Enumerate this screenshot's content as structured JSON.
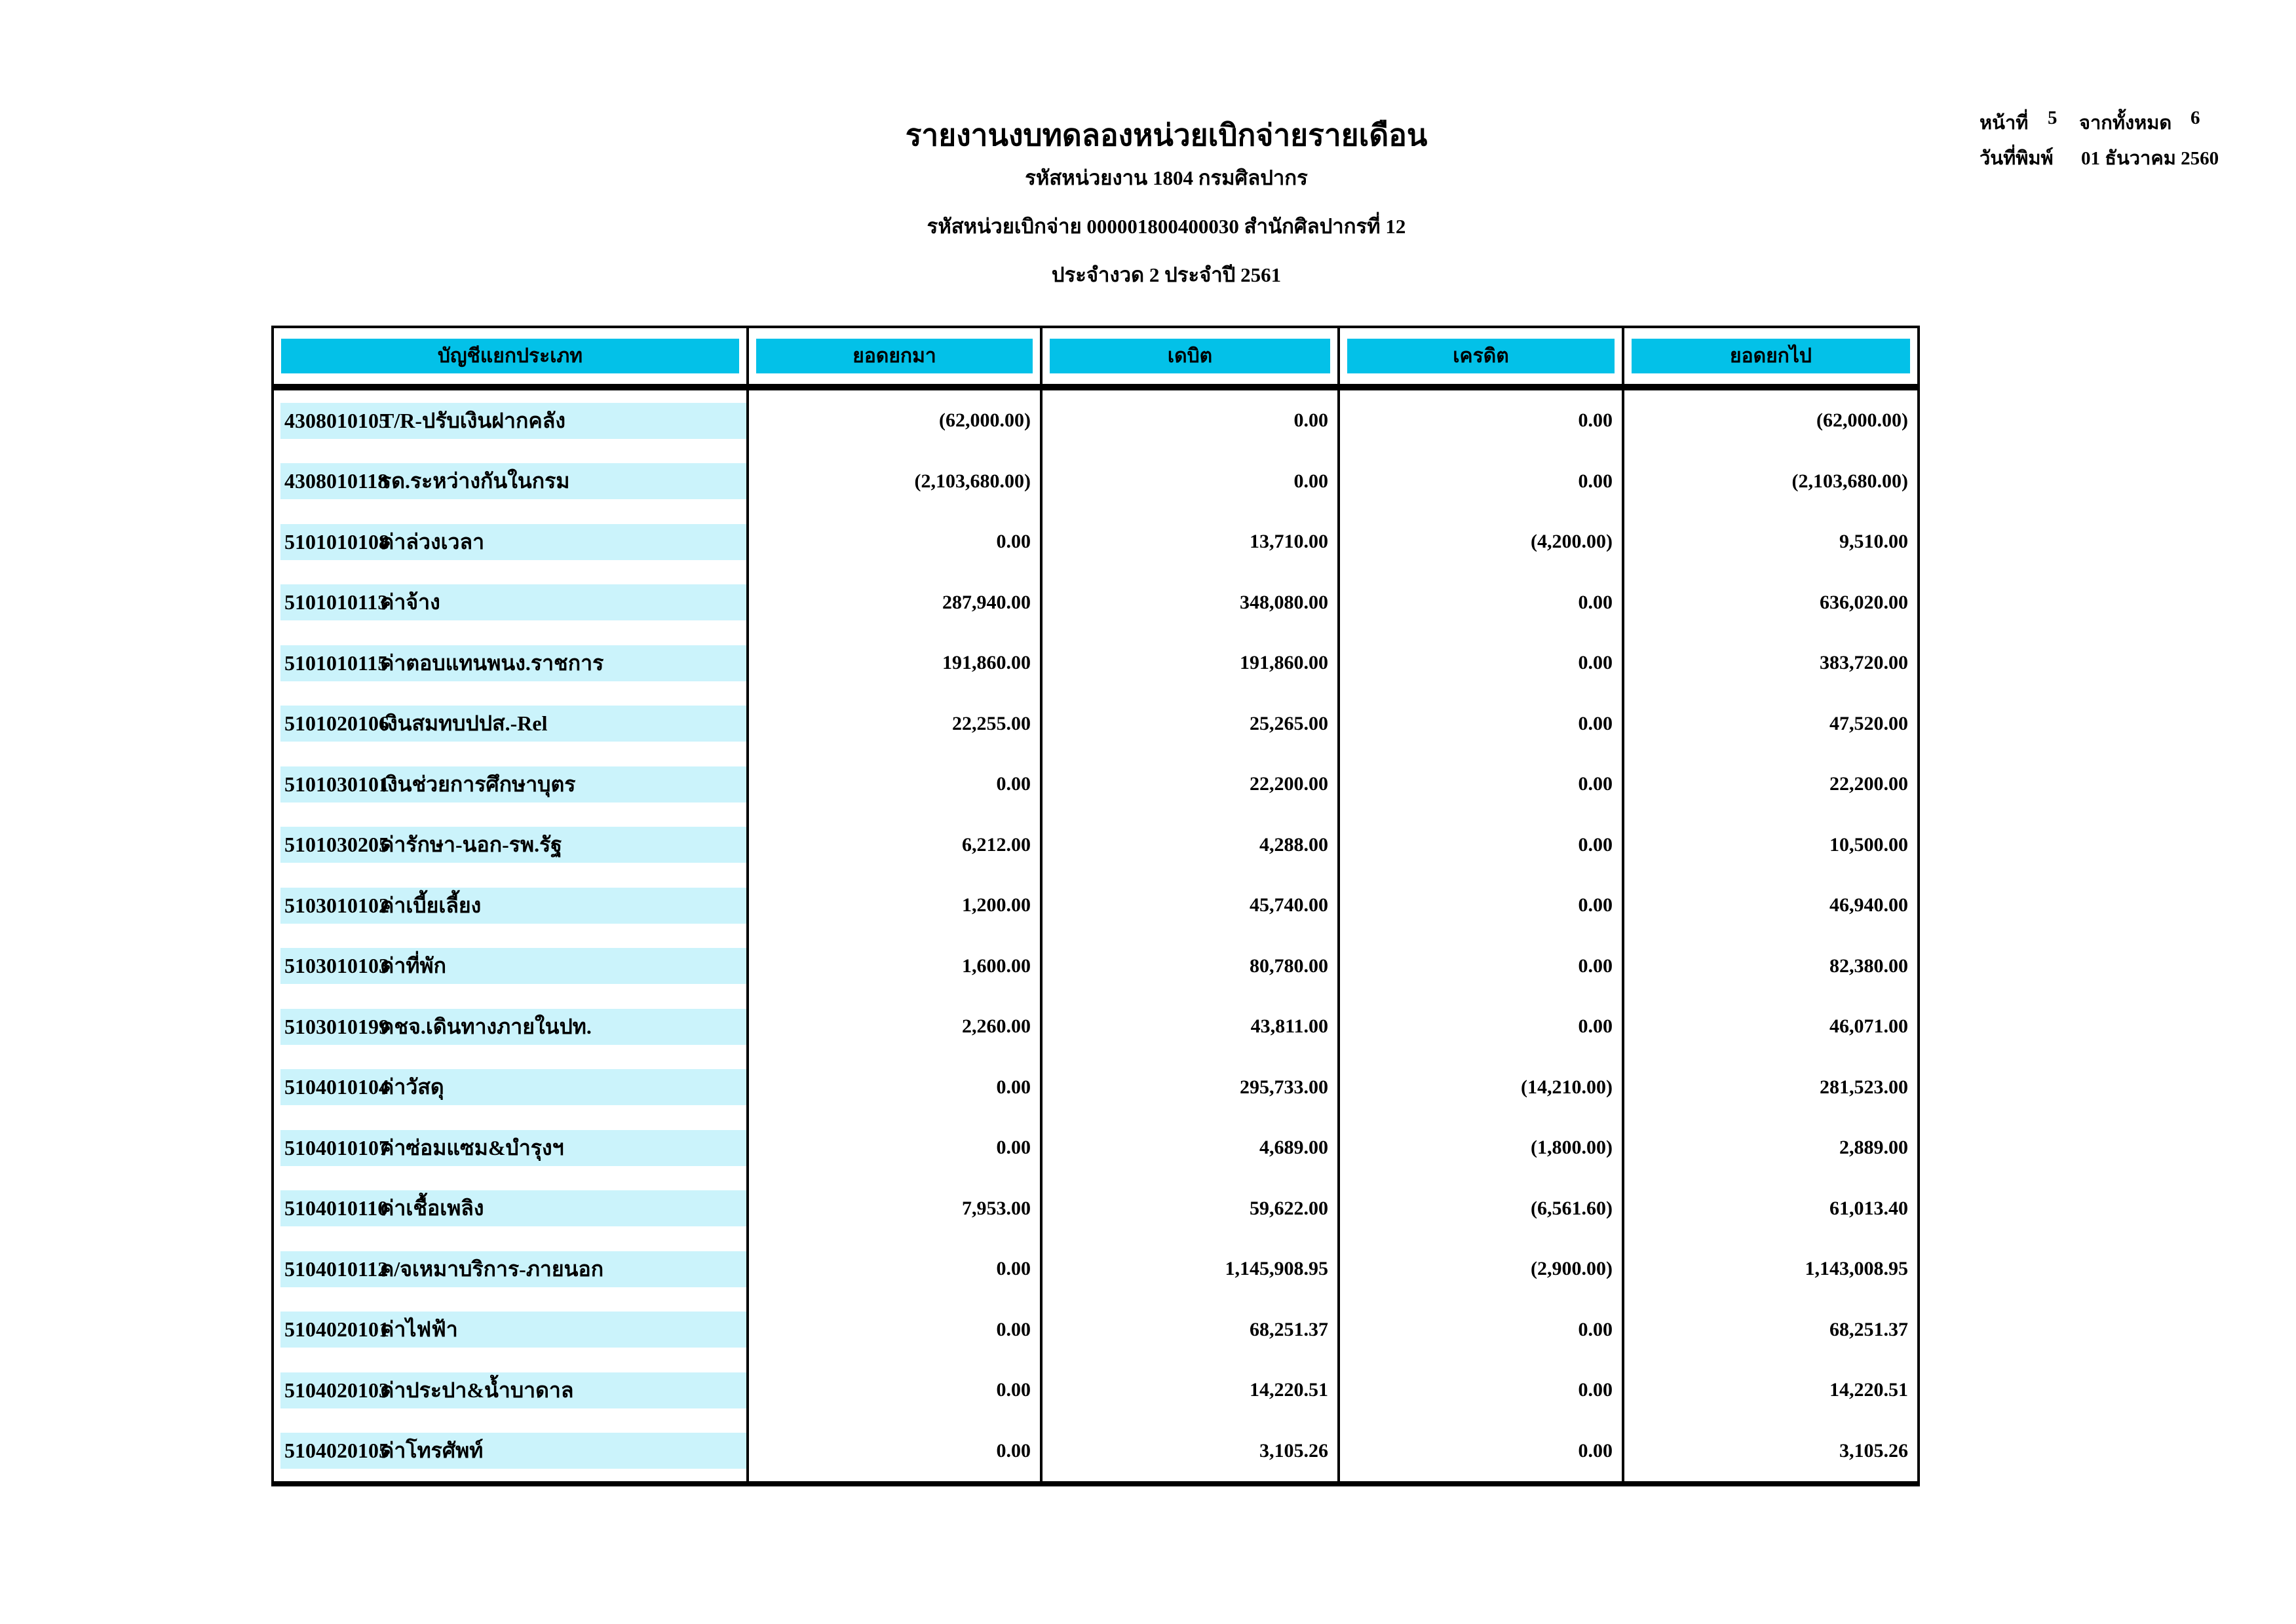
{
  "report": {
    "title": "รายงานงบทดลองหน่วยเบิกจ่ายรายเดือน",
    "org_line": "รหัสหน่วยงาน 1804 กรมศิลปากร",
    "unit_line": "รหัสหน่วยเบิกจ่าย 000001800400030 สำนักศิลปากรที่ 12",
    "period_line": "ประจำงวด 2 ประจำปี 2561"
  },
  "page_info": {
    "page_label": "หน้าที่",
    "page_number": "5",
    "total_label": "จากทั้งหมด",
    "total_pages": "6",
    "print_date_label": "วันที่พิมพ์",
    "print_date": "01 ธันวาคม 2560"
  },
  "table": {
    "headers": [
      "บัญชีแยกประเภท",
      "ยอดยกมา",
      "เดบิต",
      "เครดิต",
      "ยอดยกไป"
    ],
    "rows": [
      {
        "code": "4308010105",
        "name": "T/R-ปรับเงินฝากคลัง",
        "opening": "(62,000.00)",
        "debit": "0.00",
        "credit": "0.00",
        "closing": "(62,000.00)"
      },
      {
        "code": "4308010118",
        "name": "รด.ระหว่างกันในกรม",
        "opening": "(2,103,680.00)",
        "debit": "0.00",
        "credit": "0.00",
        "closing": "(2,103,680.00)"
      },
      {
        "code": "5101010108",
        "name": "ค่าล่วงเวลา",
        "opening": "0.00",
        "debit": "13,710.00",
        "credit": "(4,200.00)",
        "closing": "9,510.00"
      },
      {
        "code": "5101010113",
        "name": "ค่าจ้าง",
        "opening": "287,940.00",
        "debit": "348,080.00",
        "credit": "0.00",
        "closing": "636,020.00"
      },
      {
        "code": "5101010115",
        "name": "ค่าตอบแทนพนง.ราชการ",
        "opening": "191,860.00",
        "debit": "191,860.00",
        "credit": "0.00",
        "closing": "383,720.00"
      },
      {
        "code": "5101020106",
        "name": "เงินสมทบปปส.-Rel",
        "opening": "22,255.00",
        "debit": "25,265.00",
        "credit": "0.00",
        "closing": "47,520.00"
      },
      {
        "code": "5101030101",
        "name": "เงินช่วยการศึกษาบุตร",
        "opening": "0.00",
        "debit": "22,200.00",
        "credit": "0.00",
        "closing": "22,200.00"
      },
      {
        "code": "5101030205",
        "name": "ค่ารักษา-นอก-รพ.รัฐ",
        "opening": "6,212.00",
        "debit": "4,288.00",
        "credit": "0.00",
        "closing": "10,500.00"
      },
      {
        "code": "5103010102",
        "name": "ค่าเบี้ยเลี้ยง",
        "opening": "1,200.00",
        "debit": "45,740.00",
        "credit": "0.00",
        "closing": "46,940.00"
      },
      {
        "code": "5103010103",
        "name": "ค่าที่พัก",
        "opening": "1,600.00",
        "debit": "80,780.00",
        "credit": "0.00",
        "closing": "82,380.00"
      },
      {
        "code": "5103010199",
        "name": "คชจ.เดินทางภายในปท.",
        "opening": "2,260.00",
        "debit": "43,811.00",
        "credit": "0.00",
        "closing": "46,071.00"
      },
      {
        "code": "5104010104",
        "name": "ค่าวัสดุ",
        "opening": "0.00",
        "debit": "295,733.00",
        "credit": "(14,210.00)",
        "closing": "281,523.00"
      },
      {
        "code": "5104010107",
        "name": "ค่าซ่อมแซม&บำรุงฯ",
        "opening": "0.00",
        "debit": "4,689.00",
        "credit": "(1,800.00)",
        "closing": "2,889.00"
      },
      {
        "code": "5104010110",
        "name": "ค่าเชื้อเพลิง",
        "opening": "7,953.00",
        "debit": "59,622.00",
        "credit": "(6,561.60)",
        "closing": "61,013.40"
      },
      {
        "code": "5104010112",
        "name": "ค/จเหมาบริการ-ภายนอก",
        "opening": "0.00",
        "debit": "1,145,908.95",
        "credit": "(2,900.00)",
        "closing": "1,143,008.95"
      },
      {
        "code": "5104020101",
        "name": "ค่าไฟฟ้า",
        "opening": "0.00",
        "debit": "68,251.37",
        "credit": "0.00",
        "closing": "68,251.37"
      },
      {
        "code": "5104020103",
        "name": "ค่าประปา&น้ำบาดาล",
        "opening": "0.00",
        "debit": "14,220.51",
        "credit": "0.00",
        "closing": "14,220.51"
      },
      {
        "code": "5104020105",
        "name": "ค่าโทรศัพท์",
        "opening": "0.00",
        "debit": "3,105.26",
        "credit": "0.00",
        "closing": "3,105.26"
      }
    ]
  },
  "colors": {
    "header_bg": "#03C1E8",
    "row_band_bg": "#CBF3FB"
  }
}
